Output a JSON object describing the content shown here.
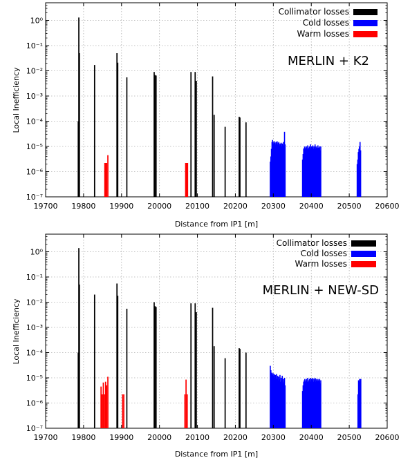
{
  "colors": {
    "collimator": "#000000",
    "cold": "#0000ff",
    "warm": "#ff0000",
    "grid": "#b0b0b0",
    "axis": "#000000"
  },
  "chart_data": [
    {
      "type": "bar",
      "scale": "log-y",
      "annotation": "MERLIN + K2",
      "xlabel": "Distance from IP1 [m]",
      "ylabel": "Local Inefficiency",
      "xlim": [
        19700,
        20600
      ],
      "ylim": [
        1e-07,
        5
      ],
      "x_ticks": [
        "19700",
        "19800",
        "19900",
        "20000",
        "20100",
        "20200",
        "20300",
        "20400",
        "20500",
        "20600"
      ],
      "y_ticks": [
        "10^0",
        "10^-1",
        "10^-2",
        "10^-3",
        "10^-4",
        "10^-5",
        "10^-6",
        "10^-7"
      ],
      "grid": true,
      "legend_position": "top-right",
      "legend": [
        {
          "label": "Collimator losses",
          "key": "collimator"
        },
        {
          "label": "Cold losses",
          "key": "cold"
        },
        {
          "label": "Warm losses",
          "key": "warm"
        }
      ],
      "series": [
        {
          "key": "collimator",
          "x": [
            19786,
            19787.5,
            19789,
            19829,
            19888,
            19890,
            19914,
            19986,
            19988,
            19991,
            20083,
            20094,
            20097,
            20140,
            20144,
            20173,
            20210,
            20212,
            20228
          ],
          "values": [
            0.0001,
            1.3,
            0.05,
            0.017,
            0.05,
            0.021,
            0.0055,
            0.009,
            0.0068,
            0.0065,
            0.009,
            0.009,
            0.004,
            0.006,
            0.00018,
            6e-05,
            0.00015,
            0.00014,
            9e-05
          ]
        },
        {
          "key": "warm",
          "x": [
            19856,
            19858,
            19861,
            19864,
            20069,
            20071,
            20074
          ],
          "values": [
            2.2e-06,
            2.2e-06,
            2.2e-06,
            4.5e-06,
            2.2e-06,
            2.2e-06,
            2.2e-06
          ]
        },
        {
          "key": "cold",
          "x": [
            20292,
            20293.5,
            20295,
            20296.5,
            20298,
            20299.5,
            20301,
            20302.5,
            20304,
            20305.5,
            20307,
            20308.5,
            20310,
            20311.5,
            20313,
            20314.5,
            20316,
            20317.5,
            20319,
            20320.5,
            20322,
            20323.5,
            20325,
            20326.5,
            20328,
            20329.5,
            20331,
            20377,
            20378.5,
            20380,
            20381.5,
            20383,
            20384.5,
            20386,
            20387.5,
            20389,
            20390.5,
            20392,
            20393.5,
            20395,
            20396.5,
            20398,
            20399.5,
            20401,
            20402.5,
            20404,
            20405.5,
            20407,
            20408.5,
            20410,
            20411.5,
            20413,
            20414.5,
            20416,
            20417.5,
            20419,
            20420.5,
            20422,
            20423.5,
            20425,
            20521,
            20522.5,
            20524,
            20525.5,
            20527,
            20528.5,
            20530
          ],
          "values": [
            2.5e-06,
            4e-06,
            8e-06,
            1.5e-05,
            1.8e-05,
            1.5e-05,
            1.3e-05,
            1.6e-05,
            1.4e-05,
            1.2e-05,
            1.5e-05,
            1.3e-05,
            1.6e-05,
            1.2e-05,
            1.4e-05,
            1.5e-05,
            1.1e-05,
            1.3e-05,
            1.2e-05,
            1.4e-05,
            1e-05,
            1.3e-05,
            1.2e-05,
            1.5e-05,
            1.1e-05,
            3.8e-05,
            1.2e-05,
            3e-06,
            5e-06,
            8e-06,
            9e-06,
            1e-05,
            8e-06,
            9e-06,
            1e-05,
            8e-06,
            1.1e-05,
            9e-06,
            8e-06,
            1e-05,
            9e-06,
            1.2e-05,
            8e-06,
            1e-05,
            9e-06,
            1.1e-05,
            8e-06,
            1e-05,
            9e-06,
            1.2e-05,
            8e-06,
            1e-05,
            9e-06,
            8e-06,
            1.1e-05,
            9e-06,
            8e-06,
            1e-05,
            7e-06,
            1e-05,
            2e-06,
            3e-06,
            6e-06,
            8e-06,
            1e-05,
            1.5e-05,
            7e-06
          ]
        }
      ]
    },
    {
      "type": "bar",
      "scale": "log-y",
      "annotation": "MERLIN + NEW-SD",
      "xlabel": "Distance from IP1 [m]",
      "ylabel": "Local Inefficiency",
      "xlim": [
        19700,
        20600
      ],
      "ylim": [
        1e-07,
        5
      ],
      "x_ticks": [
        "19700",
        "19800",
        "19900",
        "20000",
        "20100",
        "20200",
        "20300",
        "20400",
        "20500",
        "20600"
      ],
      "y_ticks": [
        "10^0",
        "10^-1",
        "10^-2",
        "10^-3",
        "10^-4",
        "10^-5",
        "10^-6",
        "10^-7"
      ],
      "grid": true,
      "legend_position": "top-right",
      "legend": [
        {
          "label": "Collimator losses",
          "key": "collimator"
        },
        {
          "label": "Cold losses",
          "key": "cold"
        },
        {
          "label": "Warm losses",
          "key": "warm"
        }
      ],
      "series": [
        {
          "key": "collimator",
          "x": [
            19786,
            19787.5,
            19789,
            19829,
            19888,
            19890,
            19914,
            19986,
            19988,
            19991,
            20083,
            20094,
            20097,
            20140,
            20144,
            20173,
            20210,
            20212,
            20228
          ],
          "values": [
            0.0001,
            1.4,
            0.05,
            0.02,
            0.055,
            0.018,
            0.0055,
            0.01,
            0.007,
            0.0065,
            0.009,
            0.009,
            0.004,
            0.006,
            0.00018,
            6e-05,
            0.00015,
            0.00014,
            0.0001
          ]
        },
        {
          "key": "warm",
          "x": [
            19846,
            19849,
            19852,
            19855,
            19858,
            19861,
            19864,
            19903,
            19906,
            20067,
            20070,
            20073
          ],
          "values": [
            4.5e-06,
            2.2e-06,
            6.5e-06,
            2.2e-06,
            7e-06,
            5e-06,
            1.1e-05,
            2.2e-06,
            2.2e-06,
            2.2e-06,
            8.5e-06,
            2.2e-06
          ]
        },
        {
          "key": "cold",
          "x": [
            20292,
            20293.5,
            20295,
            20296.5,
            20298,
            20299.5,
            20301,
            20302.5,
            20304,
            20305.5,
            20307,
            20308.5,
            20310,
            20311.5,
            20313,
            20314.5,
            20316,
            20317.5,
            20319,
            20320.5,
            20322,
            20323.5,
            20325,
            20326.5,
            20328,
            20329.5,
            20331,
            20377,
            20378.5,
            20380,
            20381.5,
            20383,
            20384.5,
            20386,
            20387.5,
            20389,
            20390.5,
            20392,
            20393.5,
            20395,
            20396.5,
            20398,
            20399.5,
            20401,
            20402.5,
            20404,
            20405.5,
            20407,
            20408.5,
            20410,
            20411.5,
            20413,
            20414.5,
            20416,
            20417.5,
            20419,
            20420.5,
            20422,
            20423.5,
            20425,
            20523,
            20524.5,
            20526,
            20527.5,
            20529,
            20530.5
          ],
          "values": [
            3e-05,
            2e-05,
            1.5e-05,
            1.6e-05,
            1.3e-05,
            1.5e-05,
            1.2e-05,
            1.4e-05,
            1e-05,
            1.3e-05,
            1.1e-05,
            1.4e-05,
            9e-06,
            1.2e-05,
            8e-06,
            1.1e-05,
            9e-06,
            1.3e-05,
            7e-06,
            1e-05,
            8e-06,
            1.2e-05,
            6e-06,
            9e-06,
            7e-06,
            1e-05,
            5e-06,
            3e-06,
            5e-06,
            7e-06,
            8e-06,
            9e-06,
            7e-06,
            8e-06,
            9e-06,
            7e-06,
            1e-05,
            8e-06,
            7e-06,
            9e-06,
            8e-06,
            1e-05,
            7e-06,
            9e-06,
            8e-06,
            1e-05,
            7e-06,
            9e-06,
            8e-06,
            1e-05,
            7e-06,
            9e-06,
            8e-06,
            7e-06,
            9e-06,
            8e-06,
            7e-06,
            9e-06,
            6e-06,
            8e-06,
            2.2e-06,
            8e-06,
            7e-06,
            9e-06,
            8e-06,
            9e-06
          ]
        }
      ]
    }
  ]
}
